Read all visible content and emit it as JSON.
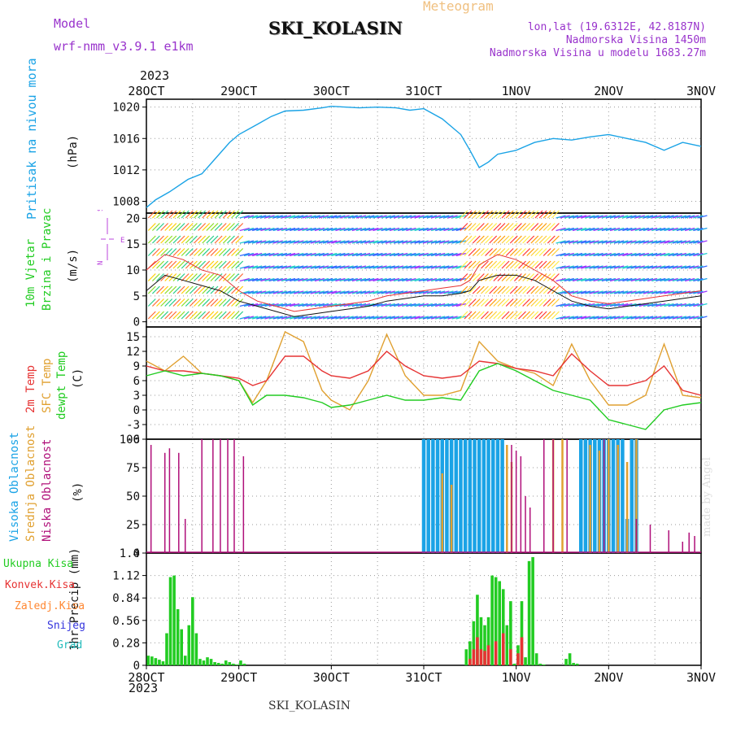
{
  "header": {
    "title": "SKI_KOLASIN",
    "meteogram": "Meteogram",
    "model_label": "Model",
    "model_name": "wrf-nmm_v3.9.1 e1km",
    "lonlat": "lon,lat (19.6312E, 42.8187N)",
    "altitude": "Nadmorska Visina 1450m",
    "model_altitude": "Nadmorska Visina u modelu 1683.27m",
    "year": "2023"
  },
  "footer": {
    "station": "SKI_KOLASIN",
    "credit": "made by Angel"
  },
  "colors": {
    "pressure": "#1aa3e6",
    "temp2m": "#e63333",
    "sfc_temp": "#e0a030",
    "dewpt": "#22cc22",
    "high_cloud": "#1aa3e6",
    "mid_cloud": "#e0a030",
    "low_cloud": "#b0107a",
    "precip_total": "#22cc22",
    "precip_conv": "#e63333",
    "precip_frozen": "#ff8833",
    "snow": "#3333dd",
    "hail": "#22bbbb",
    "wind_label": "#22cc22",
    "wind_compass": "#bb44dd"
  },
  "chart_data": [
    {
      "id": "pressure",
      "type": "line",
      "ylabel_lines": [
        "Pritisak na nivou mora",
        "(hPa)"
      ],
      "x_categories": [
        "28OCT",
        "29OCT",
        "30OCT",
        "31OCT",
        "1NOV",
        "2NOV",
        "3NOV"
      ],
      "x_day_offset": [
        0,
        1,
        2,
        3,
        4,
        5,
        6
      ],
      "ylim": [
        1006.5,
        1021
      ],
      "yticks": [
        1008,
        1012,
        1016,
        1020
      ],
      "grid": true,
      "series": [
        {
          "x_days": [
            0,
            0.1,
            0.25,
            0.45,
            0.6,
            0.75,
            0.9,
            1,
            1.2,
            1.35,
            1.5,
            1.7,
            1.9,
            2,
            2.3,
            2.5,
            2.7,
            2.85,
            3,
            3.2,
            3.4,
            3.5,
            3.6,
            3.7,
            3.8,
            4,
            4.2,
            4.4,
            4.6,
            4.8,
            5,
            5.2,
            5.4,
            5.6,
            5.8,
            6
          ],
          "values": [
            1007.2,
            1008.2,
            1009.2,
            1010.8,
            1011.5,
            1013.5,
            1015.5,
            1016.5,
            1017.8,
            1018.8,
            1019.5,
            1019.6,
            1019.9,
            1020.1,
            1019.9,
            1020,
            1019.9,
            1019.6,
            1019.8,
            1018.5,
            1016.5,
            1014.5,
            1012.3,
            1013,
            1014,
            1014.5,
            1015.5,
            1016,
            1015.8,
            1016.2,
            1016.5,
            1016,
            1015.5,
            1014.5,
            1015.5,
            1015
          ]
        }
      ]
    },
    {
      "id": "wind",
      "type": "line",
      "ylabel_lines": [
        "10m Vjetar",
        "Brzina i Pravac",
        "(m/s)"
      ],
      "compass": [
        "W",
        "E",
        "N",
        "S"
      ],
      "x_categories": [
        "28OCT",
        "29OCT",
        "30OCT",
        "31OCT",
        "1NOV",
        "2NOV",
        "3NOV"
      ],
      "ylim": [
        -1,
        21
      ],
      "yticks": [
        0,
        5,
        10,
        15,
        20
      ],
      "grid": true,
      "series": [
        {
          "name": "wind_speed",
          "x_days": [
            0,
            0.2,
            0.4,
            0.6,
            0.8,
            1,
            1.2,
            1.4,
            1.6,
            1.8,
            2,
            2.2,
            2.4,
            2.6,
            2.8,
            3,
            3.2,
            3.4,
            3.5,
            3.6,
            3.8,
            4,
            4.2,
            4.4,
            4.6,
            4.8,
            5,
            5.2,
            5.4,
            5.6,
            5.8,
            6
          ],
          "values": [
            6,
            9,
            8,
            7,
            6,
            4,
            3,
            2,
            1,
            1.5,
            2,
            2.5,
            3,
            4,
            4.5,
            5,
            5,
            5.5,
            6,
            8,
            9,
            9,
            8,
            6,
            4,
            3,
            2.5,
            3,
            3.5,
            4,
            4.5,
            5
          ]
        },
        {
          "name": "wind_gust",
          "x_days": [
            0,
            0.2,
            0.4,
            0.6,
            0.8,
            1,
            1.2,
            1.4,
            1.6,
            1.8,
            2,
            2.2,
            2.4,
            2.6,
            2.8,
            3,
            3.2,
            3.4,
            3.5,
            3.6,
            3.8,
            4,
            4.2,
            4.4,
            4.6,
            4.8,
            5,
            5.2,
            5.4,
            5.6,
            5.8,
            6
          ],
          "values": [
            10,
            13,
            12,
            10,
            9,
            6,
            4,
            3,
            2,
            2.5,
            3,
            3.5,
            4,
            5,
            5.5,
            6,
            6.5,
            7,
            8,
            11,
            13,
            12,
            10,
            8,
            5,
            4,
            3.5,
            4,
            4.5,
            5,
            5.5,
            6
          ]
        }
      ]
    },
    {
      "id": "temperature",
      "type": "line",
      "ylabel_lines": [
        "2m Temp",
        "SFC Temp",
        "dewpt Temp",
        "(C)"
      ],
      "x_categories": [
        "28OCT",
        "29OCT",
        "30OCT",
        "31OCT",
        "1NOV",
        "2NOV",
        "3NOV"
      ],
      "ylim": [
        -6,
        17
      ],
      "yticks": [
        -6,
        -3,
        0,
        3,
        6,
        9,
        12,
        15
      ],
      "grid": true,
      "series": [
        {
          "name": "2m Temp",
          "x_days": [
            0,
            0.2,
            0.4,
            0.6,
            0.8,
            1,
            1.15,
            1.3,
            1.5,
            1.7,
            1.9,
            2,
            2.2,
            2.4,
            2.6,
            2.8,
            3,
            3.2,
            3.4,
            3.6,
            3.8,
            4,
            4.2,
            4.4,
            4.6,
            4.8,
            5,
            5.2,
            5.4,
            5.6,
            5.8,
            6
          ],
          "values": [
            9,
            8,
            8,
            7.5,
            7,
            6.5,
            5,
            6,
            11,
            11,
            8,
            7,
            6.5,
            8,
            12,
            9,
            7,
            6.5,
            7,
            10,
            9.5,
            8.5,
            8,
            7,
            11.5,
            8,
            5,
            5,
            6,
            9,
            4,
            3
          ]
        },
        {
          "name": "SFC Temp",
          "x_days": [
            0,
            0.2,
            0.4,
            0.6,
            0.8,
            1,
            1.15,
            1.3,
            1.5,
            1.7,
            1.9,
            2,
            2.2,
            2.4,
            2.6,
            2.8,
            3,
            3.2,
            3.4,
            3.6,
            3.8,
            4,
            4.2,
            4.4,
            4.6,
            4.8,
            5,
            5.2,
            5.4,
            5.6,
            5.8,
            6
          ],
          "values": [
            10,
            8,
            11,
            7.5,
            7,
            6,
            1.5,
            6,
            16,
            14,
            4,
            2,
            0,
            6,
            15.5,
            7,
            3,
            3,
            4,
            14,
            10,
            8.5,
            7.5,
            5,
            13.5,
            6,
            1,
            1,
            3,
            13.5,
            3,
            2.5
          ]
        },
        {
          "name": "dewpt Temp",
          "x_days": [
            0,
            0.2,
            0.4,
            0.6,
            0.8,
            1,
            1.15,
            1.3,
            1.5,
            1.7,
            1.9,
            2,
            2.2,
            2.4,
            2.6,
            2.8,
            3,
            3.2,
            3.4,
            3.6,
            3.8,
            4,
            4.2,
            4.4,
            4.6,
            4.8,
            5,
            5.2,
            5.4,
            5.6,
            5.8,
            6
          ],
          "values": [
            7,
            8,
            7,
            7.5,
            7,
            6,
            1,
            3,
            3,
            2.5,
            1.5,
            0.5,
            1,
            2,
            3,
            2,
            2,
            2.5,
            2,
            8,
            9.5,
            8,
            6,
            4,
            3,
            2,
            -2,
            -3,
            -4,
            0,
            1,
            1.5
          ]
        }
      ]
    },
    {
      "id": "clouds",
      "type": "bar",
      "ylabel_lines": [
        "Visoka Oblacnost",
        "Srednja Oblacnost",
        "Niska Oblacnost",
        "(%)"
      ],
      "x_categories": [
        "28OCT",
        "29OCT",
        "30OCT",
        "31OCT",
        "1NOV",
        "2NOV",
        "3NOV"
      ],
      "ylim": [
        0,
        100
      ],
      "yticks": [
        0,
        25,
        50,
        75,
        100
      ],
      "grid": true,
      "series": [
        {
          "name": "Visoka Oblacnost",
          "x_days": [
            3,
            3.05,
            3.1,
            3.15,
            3.2,
            3.25,
            3.3,
            3.35,
            3.4,
            3.45,
            3.5,
            3.55,
            3.6,
            3.65,
            3.7,
            3.75,
            3.8,
            3.85,
            4.7,
            4.75,
            4.8,
            4.85,
            4.9,
            4.95,
            5,
            5.05,
            5.1,
            5.15,
            5.2,
            5.25,
            5.3
          ],
          "values": [
            100,
            100,
            100,
            100,
            100,
            100,
            100,
            100,
            100,
            100,
            100,
            100,
            100,
            100,
            100,
            100,
            100,
            100,
            100,
            100,
            100,
            100,
            100,
            100,
            100,
            100,
            100,
            100,
            30,
            100,
            100
          ]
        },
        {
          "name": "Srednja Oblacnost",
          "x_days": [
            3.2,
            3.3,
            3.9,
            3.95,
            4.4,
            4.5,
            4.8,
            4.9,
            5,
            5.1,
            5.2,
            5.3
          ],
          "values": [
            70,
            60,
            95,
            80,
            100,
            100,
            95,
            90,
            100,
            95,
            80,
            100
          ]
        },
        {
          "name": "Niska Oblacnost",
          "x_days": [
            0.05,
            0.2,
            0.25,
            0.35,
            0.42,
            0.6,
            0.72,
            0.8,
            0.88,
            0.95,
            1.05,
            3.95,
            4.0,
            4.05,
            4.1,
            4.15,
            4.3,
            4.4,
            4.55,
            4.95,
            5.3,
            5.45,
            5.65,
            5.8,
            5.87,
            5.93
          ],
          "values": [
            95,
            88,
            92,
            88,
            30,
            100,
            100,
            100,
            100,
            100,
            85,
            95,
            90,
            85,
            50,
            40,
            100,
            100,
            100,
            100,
            30,
            25,
            20,
            10,
            18,
            15
          ]
        }
      ]
    },
    {
      "id": "precip",
      "type": "bar",
      "ylabel_lines": [
        "1hr Precip (mm)"
      ],
      "legend": [
        "Ukupna Kisa",
        "Konvek.Kisa",
        "Zaledj.Kisa",
        "Snijeg",
        "Grad"
      ],
      "x_categories": [
        "28OCT",
        "29OCT",
        "30OCT",
        "31OCT",
        "1NOV",
        "2NOV",
        "3NOV"
      ],
      "ylim": [
        0,
        1.4
      ],
      "yticks": [
        0,
        0.28,
        0.56,
        0.84,
        1.12,
        1.4
      ],
      "grid": true,
      "series": [
        {
          "name": "Ukupna Kisa",
          "x_days": [
            0.02,
            0.06,
            0.1,
            0.14,
            0.18,
            0.22,
            0.26,
            0.3,
            0.34,
            0.38,
            0.42,
            0.46,
            0.5,
            0.54,
            0.58,
            0.62,
            0.66,
            0.7,
            0.74,
            0.78,
            0.82,
            0.86,
            0.9,
            0.94,
            0.98,
            1.02,
            1.06,
            3.46,
            3.5,
            3.54,
            3.58,
            3.62,
            3.66,
            3.7,
            3.74,
            3.78,
            3.82,
            3.86,
            3.9,
            3.94,
            3.98,
            4.02,
            4.06,
            4.1,
            4.14,
            4.18,
            4.22,
            4.26,
            4.3,
            4.34,
            4.38,
            4.42,
            4.46,
            4.5,
            4.54,
            4.58,
            4.62,
            4.66,
            4.7,
            4.74,
            4.78,
            4.82,
            4.86,
            4.9,
            4.94,
            4.98,
            5.02,
            5.06,
            5.1,
            5.14,
            5.18,
            5.22,
            5.26,
            5.3,
            5.34,
            5.38,
            5.42,
            5.46,
            5.5,
            5.54,
            5.58
          ],
          "values": [
            0.12,
            0.11,
            0.09,
            0.07,
            0.05,
            0.4,
            1.1,
            1.12,
            0.7,
            0.45,
            0.12,
            0.5,
            0.85,
            0.4,
            0.08,
            0.06,
            0.1,
            0.08,
            0.04,
            0.03,
            0.02,
            0.06,
            0.04,
            0.02,
            0.01,
            0.06,
            0.02,
            0.2,
            0.3,
            0.55,
            0.88,
            0.6,
            0.5,
            0.6,
            1.12,
            1.1,
            1.05,
            0.95,
            0.5,
            0.8,
            0.02,
            0.25,
            0.8,
            0.1,
            1.3,
            1.35,
            0.15,
            0.02,
            0.01,
            0,
            0,
            0,
            0,
            0,
            0.08,
            0.15,
            0.03,
            0.02,
            0,
            0,
            0,
            0,
            0,
            0,
            0,
            0,
            0,
            0,
            0,
            0,
            0,
            0,
            0,
            0,
            0,
            0,
            0,
            0,
            0,
            0,
            0
          ]
        },
        {
          "name": "Konvek.Kisa",
          "x_days": [
            3.5,
            3.54,
            3.58,
            3.62,
            3.66,
            3.7,
            3.78,
            3.86,
            3.94,
            4.02,
            4.06
          ],
          "values": [
            0.08,
            0.2,
            0.35,
            0.2,
            0.18,
            0.25,
            0.3,
            0.4,
            0.2,
            0.15,
            0.35
          ]
        }
      ]
    }
  ]
}
